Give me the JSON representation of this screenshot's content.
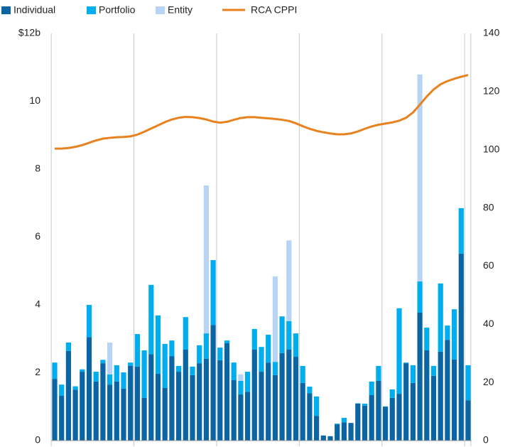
{
  "chart_data": {
    "type": "stacked_bar_line",
    "categories": [
      null,
      null,
      null,
      null,
      null,
      null,
      null,
      null,
      null,
      null,
      null,
      null,
      null,
      null,
      null,
      null,
      null,
      null,
      null,
      null,
      null,
      null,
      null,
      null,
      null,
      null,
      null,
      null,
      null,
      null,
      null,
      null,
      null,
      null,
      null,
      null,
      null,
      null,
      null,
      null,
      null,
      null,
      null,
      null,
      null,
      null,
      null,
      null,
      null,
      null,
      null,
      null,
      null,
      null,
      null,
      null,
      null,
      null,
      null,
      null,
      null
    ],
    "series": [
      {
        "name": "Individual",
        "color": "#0b65a3",
        "values": [
          1.82,
          1.32,
          2.64,
          1.5,
          2.03,
          3.05,
          1.74,
          2.28,
          1.65,
          1.74,
          1.53,
          2.2,
          2.18,
          1.26,
          2.55,
          1.97,
          1.55,
          2.49,
          2.03,
          2.68,
          1.93,
          2.28,
          2.41,
          3.41,
          2.37,
          2.87,
          1.78,
          1.36,
          1.44,
          2.68,
          2.03,
          2.3,
          1.93,
          2.58,
          2.68,
          2.47,
          1.7,
          1.4,
          0.73,
          0.15,
          0.13,
          0.48,
          0.54,
          0.52,
          1.09,
          1.03,
          1.34,
          1.76,
          1.0,
          1.26,
          1.38,
          2.28,
          1.7,
          3.77,
          2.66,
          1.91,
          2.62,
          2.97,
          2.39,
          5.51,
          1.19
        ]
      },
      {
        "name": "Portfolio",
        "color": "#00aeef",
        "values": [
          0.48,
          0.33,
          0.25,
          0.1,
          0.07,
          0.95,
          0.29,
          0.1,
          0.3,
          0.48,
          0.48,
          0.1,
          0.96,
          1.4,
          2.04,
          1.72,
          1.3,
          0.46,
          0.17,
          0.96,
          0.25,
          0.53,
          0.75,
          1.91,
          0.37,
          0.08,
          0.52,
          0.4,
          0.59,
          0.61,
          0.73,
          0.82,
          0.39,
          1.08,
          0.84,
          0.69,
          0.5,
          0.19,
          0.57,
          0,
          0,
          0.02,
          0.13,
          0,
          0.01,
          0.06,
          0.4,
          0.44,
          0.01,
          0.25,
          2.52,
          0.02,
          0.52,
          0.92,
          0.67,
          0.29,
          2.01,
          0.42,
          1.48,
          1.34,
          1.03
        ]
      },
      {
        "name": "Entity",
        "color": "#b8d4f5",
        "values": [
          0,
          0,
          0,
          0,
          0,
          0,
          0,
          0,
          0.94,
          0,
          0,
          0,
          0,
          0,
          0,
          0,
          0,
          0,
          0,
          0,
          0,
          0,
          4.36,
          0,
          0,
          0,
          0,
          0.19,
          0,
          0,
          0,
          0,
          2.52,
          0,
          2.38,
          0,
          0,
          0,
          0,
          0,
          0,
          0,
          0,
          0,
          0,
          0,
          0,
          0,
          0,
          0,
          0,
          0,
          0,
          6.1,
          0,
          0,
          0,
          0,
          0,
          0,
          0
        ]
      },
      {
        "name": "RCA CPPI",
        "color": "#e8821e",
        "axis": "y2",
        "values": [
          100.4,
          100.4,
          100.6,
          101,
          101.6,
          102.4,
          103.2,
          103.8,
          104.1,
          104.3,
          104.4,
          104.6,
          105.2,
          106.2,
          107.3,
          108.4,
          109.5,
          110.4,
          111,
          111.3,
          111.2,
          110.9,
          110.4,
          109.7,
          109.3,
          109.6,
          110.3,
          110.9,
          111.2,
          111.2,
          111,
          110.8,
          110.6,
          110.3,
          109.9,
          109.1,
          108.1,
          107.2,
          106.5,
          106,
          105.6,
          105.3,
          105.3,
          105.6,
          106.3,
          107.2,
          108,
          108.6,
          109,
          109.4,
          110,
          111,
          112.8,
          115.5,
          118.3,
          120.7,
          122.5,
          123.6,
          124.4,
          125.1,
          125.7
        ]
      }
    ],
    "ylim": [
      0,
      12
    ],
    "yticks": [
      0,
      2,
      4,
      6,
      8,
      10,
      {
        "value": 12,
        "label": "$12b"
      }
    ],
    "y2lim": [
      0,
      140
    ],
    "y2ticks": [
      0,
      20,
      40,
      60,
      80,
      100,
      120,
      140
    ],
    "legend": "top-left"
  }
}
